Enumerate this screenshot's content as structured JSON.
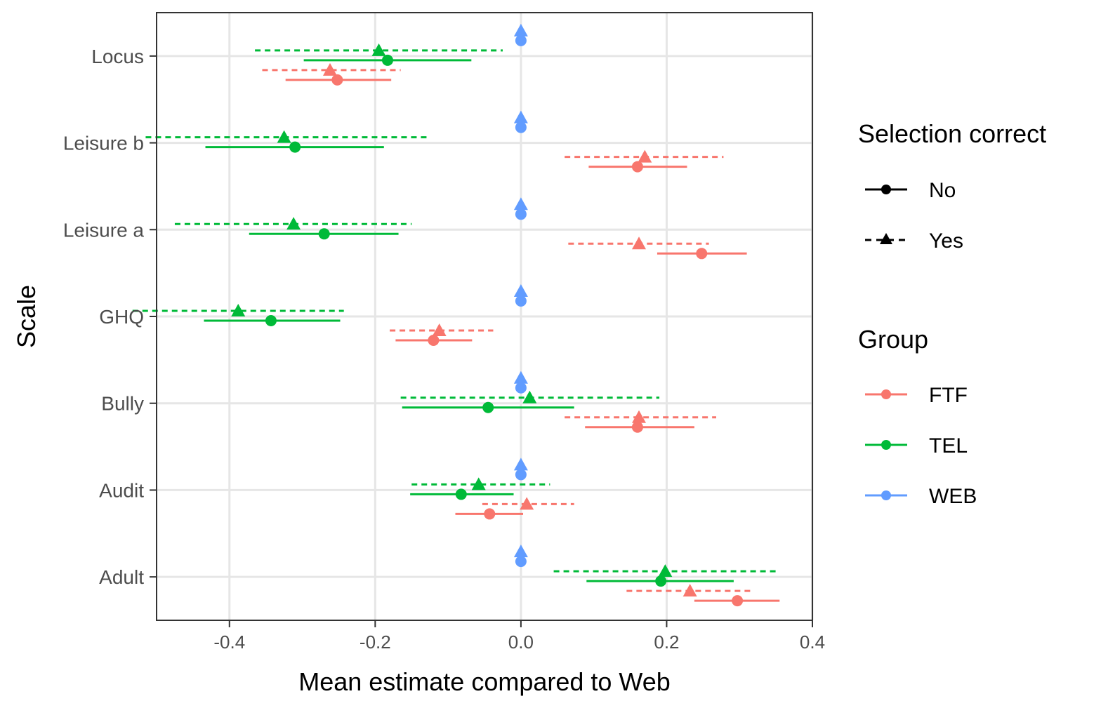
{
  "chart_data": {
    "type": "scatter",
    "title": "",
    "xlabel": "Mean estimate compared to Web",
    "ylabel": "Scale",
    "xlim": [
      -0.5,
      0.4
    ],
    "x_ticks": [
      "-0.4",
      "-0.2",
      "0.0",
      "0.2",
      "0.4"
    ],
    "x_tick_values": [
      -0.4,
      -0.2,
      0.0,
      0.2,
      0.4
    ],
    "categories": [
      "Locus",
      "Leisure b",
      "Leisure a",
      "GHQ",
      "Bully",
      "Audit",
      "Adult"
    ],
    "grid": true,
    "legend_position": "right",
    "legends": {
      "selection": {
        "title": "Selection correct",
        "items": [
          {
            "label": "No",
            "key": "No"
          },
          {
            "label": "Yes",
            "key": "Yes"
          }
        ]
      },
      "group": {
        "title": "Group",
        "items": [
          {
            "label": "FTF",
            "key": "FTF",
            "color": "#F8766D"
          },
          {
            "label": "TEL",
            "key": "TEL",
            "color": "#00BA38"
          },
          {
            "label": "WEB",
            "key": "WEB",
            "color": "#619CFF"
          }
        ]
      }
    },
    "colors": {
      "FTF": "#F8766D",
      "TEL": "#00BA38",
      "WEB": "#619CFF"
    },
    "series": [
      {
        "group": "WEB",
        "selection": "Yes",
        "points": [
          {
            "scale": "Locus",
            "x": 0.0
          },
          {
            "scale": "Leisure b",
            "x": 0.0
          },
          {
            "scale": "Leisure a",
            "x": 0.0
          },
          {
            "scale": "GHQ",
            "x": 0.0
          },
          {
            "scale": "Bully",
            "x": 0.0
          },
          {
            "scale": "Audit",
            "x": 0.0
          },
          {
            "scale": "Adult",
            "x": 0.0
          }
        ]
      },
      {
        "group": "WEB",
        "selection": "No",
        "points": [
          {
            "scale": "Locus",
            "x": 0.0
          },
          {
            "scale": "Leisure b",
            "x": 0.0
          },
          {
            "scale": "Leisure a",
            "x": 0.0
          },
          {
            "scale": "GHQ",
            "x": 0.0
          },
          {
            "scale": "Bully",
            "x": 0.0
          },
          {
            "scale": "Audit",
            "x": 0.0
          },
          {
            "scale": "Adult",
            "x": 0.0
          }
        ]
      },
      {
        "group": "TEL",
        "selection": "Yes",
        "points": [
          {
            "scale": "Locus",
            "x": -0.195,
            "lo": -0.365,
            "hi": -0.025
          },
          {
            "scale": "Leisure b",
            "x": -0.325,
            "lo": -0.515,
            "hi": -0.125
          },
          {
            "scale": "Leisure a",
            "x": -0.312,
            "lo": -0.475,
            "hi": -0.15
          },
          {
            "scale": "GHQ",
            "x": -0.388,
            "lo": -0.533,
            "hi": -0.243
          },
          {
            "scale": "Bully",
            "x": 0.012,
            "lo": -0.165,
            "hi": 0.19
          },
          {
            "scale": "Audit",
            "x": -0.058,
            "lo": -0.15,
            "hi": 0.04
          },
          {
            "scale": "Adult",
            "x": 0.198,
            "lo": 0.045,
            "hi": 0.35
          }
        ]
      },
      {
        "group": "TEL",
        "selection": "No",
        "points": [
          {
            "scale": "Locus",
            "x": -0.183,
            "lo": -0.298,
            "hi": -0.068
          },
          {
            "scale": "Leisure b",
            "x": -0.31,
            "lo": -0.433,
            "hi": -0.188
          },
          {
            "scale": "Leisure a",
            "x": -0.27,
            "lo": -0.373,
            "hi": -0.168
          },
          {
            "scale": "GHQ",
            "x": -0.343,
            "lo": -0.435,
            "hi": -0.248
          },
          {
            "scale": "Bully",
            "x": -0.045,
            "lo": -0.163,
            "hi": 0.073
          },
          {
            "scale": "Audit",
            "x": -0.082,
            "lo": -0.152,
            "hi": -0.01
          },
          {
            "scale": "Adult",
            "x": 0.192,
            "lo": 0.09,
            "hi": 0.292
          }
        ]
      },
      {
        "group": "FTF",
        "selection": "Yes",
        "points": [
          {
            "scale": "Locus",
            "x": -0.262,
            "lo": -0.355,
            "hi": -0.165
          },
          {
            "scale": "Leisure b",
            "x": 0.17,
            "lo": 0.06,
            "hi": 0.278
          },
          {
            "scale": "Leisure a",
            "x": 0.162,
            "lo": 0.065,
            "hi": 0.258
          },
          {
            "scale": "GHQ",
            "x": -0.112,
            "lo": -0.18,
            "hi": -0.038
          },
          {
            "scale": "Bully",
            "x": 0.162,
            "lo": 0.06,
            "hi": 0.268
          },
          {
            "scale": "Audit",
            "x": 0.008,
            "lo": -0.053,
            "hi": 0.073
          },
          {
            "scale": "Adult",
            "x": 0.232,
            "lo": 0.145,
            "hi": 0.32
          }
        ]
      },
      {
        "group": "FTF",
        "selection": "No",
        "points": [
          {
            "scale": "Locus",
            "x": -0.252,
            "lo": -0.323,
            "hi": -0.178
          },
          {
            "scale": "Leisure b",
            "x": 0.16,
            "lo": 0.093,
            "hi": 0.228
          },
          {
            "scale": "Leisure a",
            "x": 0.248,
            "lo": 0.187,
            "hi": 0.31
          },
          {
            "scale": "GHQ",
            "x": -0.12,
            "lo": -0.172,
            "hi": -0.067
          },
          {
            "scale": "Bully",
            "x": 0.16,
            "lo": 0.088,
            "hi": 0.238
          },
          {
            "scale": "Audit",
            "x": -0.043,
            "lo": -0.09,
            "hi": 0.003
          },
          {
            "scale": "Adult",
            "x": 0.297,
            "lo": 0.238,
            "hi": 0.355
          }
        ]
      }
    ]
  }
}
